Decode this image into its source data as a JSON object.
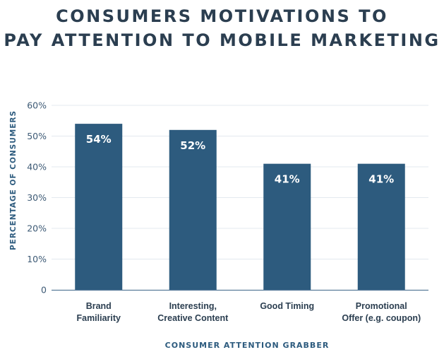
{
  "chart_data": {
    "type": "bar",
    "title": [
      "CONSUMERS MOTIVATIONS TO",
      "PAY ATTENTION TO MOBILE MARKETING"
    ],
    "xlabel": "CONSUMER ATTENTION GRABBER",
    "ylabel": "PERCENTAGE OF CONSUMERS",
    "categories": [
      [
        "Brand",
        "Familiarity"
      ],
      [
        "Interesting,",
        "Creative Content"
      ],
      [
        "Good Timing"
      ],
      [
        "Promotional",
        "Offer (e.g. coupon)"
      ]
    ],
    "values": [
      54,
      52,
      41,
      41
    ],
    "data_labels": [
      "54%",
      "52%",
      "41%",
      "41%"
    ],
    "ylim": [
      0,
      60
    ],
    "yticks": [
      0,
      10,
      20,
      30,
      40,
      50,
      60
    ],
    "ytick_labels": [
      "0",
      "10%",
      "20%",
      "30%",
      "40%",
      "50%",
      "60%"
    ],
    "grid": true,
    "colors": {
      "bar": "#2d5b7e",
      "axis_text": "#3d5a75",
      "title": "#2b3e50",
      "grid": "#e3e9ef",
      "label": "#ffffff"
    }
  }
}
